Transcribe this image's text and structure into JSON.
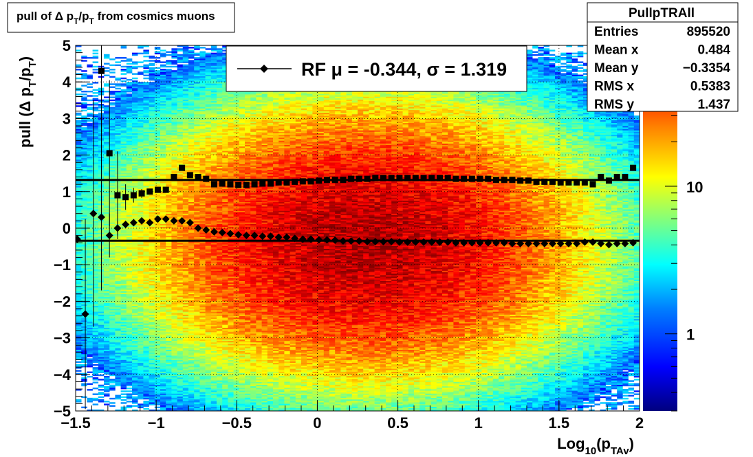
{
  "title": "pull of Δ p_T/p_T from cosmics muons",
  "stats": {
    "name": "PullpTRAll",
    "rows": [
      {
        "label": "Entries",
        "value": "895520"
      },
      {
        "label": "Mean x",
        "value": "0.484"
      },
      {
        "label": "Mean y",
        "value": "−0.3354"
      },
      {
        "label": "RMS x",
        "value": "0.5383"
      },
      {
        "label": "RMS y",
        "value": "1.437"
      }
    ]
  },
  "legend": {
    "text": "RF μ = -0.344, σ =   1.319"
  },
  "colors": {
    "frame": "#000000",
    "palette": [
      "#00007f",
      "#0000ff",
      "#007fff",
      "#00ffff",
      "#7fff7f",
      "#ffff00",
      "#ff7f00",
      "#ff0000",
      "#7f0000"
    ]
  },
  "chart_data": {
    "type": "heatmap",
    "x_axis": {
      "range": [
        -1.5,
        2
      ],
      "ticks": [
        -1.5,
        -1,
        -0.5,
        0,
        0.5,
        1,
        1.5,
        2
      ],
      "tick_labels": [
        "−1.5",
        "−1",
        "−0.5",
        "0",
        "0.5",
        "1",
        "1.5",
        "2"
      ],
      "label": "Log10(pTAv)"
    },
    "y_axis": {
      "range": [
        -5,
        5
      ],
      "ticks": [
        -5,
        -4,
        -3,
        -2,
        -1,
        0,
        1,
        2,
        3,
        4,
        5
      ],
      "tick_labels": [
        "−5",
        "−4",
        "−3",
        "−2",
        "−1",
        "0",
        "1",
        "2",
        "3",
        "4",
        "5"
      ],
      "label": "pull (Δ p_T/p_T)"
    },
    "z_axis": {
      "scale": "log",
      "tick_labels": [
        "1",
        "10"
      ],
      "tick_values": [
        1,
        10
      ],
      "range": [
        0.3,
        90
      ]
    },
    "grid": true,
    "density": {
      "x_center": 0.3,
      "y_center": -0.35,
      "x_rms": 0.5383,
      "y_rms": 1.437,
      "peak_counts": 70
    },
    "series": [
      {
        "kind": "sigma",
        "marker": "square",
        "x": [
          -1.34,
          -1.29,
          -1.24,
          -1.19,
          -1.14,
          -1.09,
          -1.04,
          -0.99,
          -0.94,
          -0.89,
          -0.84,
          -0.79,
          -0.74,
          -0.69,
          -0.64,
          -0.59,
          -0.54,
          -0.49,
          -0.44,
          -0.39,
          -0.34,
          -0.29,
          -0.24,
          -0.19,
          -0.14,
          -0.09,
          -0.04,
          0.01,
          0.06,
          0.11,
          0.16,
          0.21,
          0.26,
          0.31,
          0.36,
          0.41,
          0.46,
          0.51,
          0.56,
          0.61,
          0.66,
          0.71,
          0.76,
          0.81,
          0.86,
          0.91,
          0.96,
          1.01,
          1.06,
          1.11,
          1.16,
          1.21,
          1.26,
          1.31,
          1.36,
          1.41,
          1.46,
          1.51,
          1.56,
          1.61,
          1.66,
          1.71,
          1.76,
          1.81,
          1.86,
          1.91,
          1.96
        ],
        "y": [
          4.3,
          2.05,
          0.9,
          0.85,
          0.9,
          0.95,
          1.0,
          1.05,
          1.05,
          1.4,
          1.65,
          1.45,
          1.4,
          1.35,
          1.2,
          1.22,
          1.2,
          1.18,
          1.18,
          1.2,
          1.22,
          1.22,
          1.25,
          1.25,
          1.27,
          1.28,
          1.28,
          1.3,
          1.32,
          1.32,
          1.32,
          1.35,
          1.35,
          1.35,
          1.37,
          1.37,
          1.37,
          1.37,
          1.37,
          1.37,
          1.37,
          1.37,
          1.37,
          1.37,
          1.35,
          1.35,
          1.35,
          1.35,
          1.35,
          1.32,
          1.32,
          1.32,
          1.3,
          1.3,
          1.27,
          1.27,
          1.27,
          1.25,
          1.25,
          1.25,
          1.25,
          1.2,
          1.4,
          1.3,
          1.4,
          1.4,
          1.65
        ],
        "err": [
          4.0,
          2.0,
          1.2,
          0.35,
          0.2,
          0.12,
          0.08,
          0.06,
          0.05,
          0.04,
          0.04,
          0.03,
          0.03,
          0.03,
          0.02,
          0.02,
          0.02,
          0.02,
          0.02,
          0.02,
          0.02,
          0.02,
          0.02,
          0.02,
          0.02,
          0.02,
          0.02,
          0.02,
          0.02,
          0.02,
          0.02,
          0.02,
          0.02,
          0.02,
          0.02,
          0.02,
          0.02,
          0.02,
          0.02,
          0.02,
          0.02,
          0.02,
          0.02,
          0.02,
          0.02,
          0.02,
          0.02,
          0.02,
          0.02,
          0.02,
          0.02,
          0.02,
          0.02,
          0.02,
          0.02,
          0.02,
          0.02,
          0.02,
          0.02,
          0.02,
          0.02,
          0.03,
          0.03,
          0.04,
          0.05,
          0.06,
          0.08
        ]
      },
      {
        "kind": "mean",
        "marker": "diamond",
        "x": [
          -1.49,
          -1.44,
          -1.39,
          -1.34,
          -1.29,
          -1.24,
          -1.19,
          -1.14,
          -1.09,
          -1.04,
          -0.99,
          -0.94,
          -0.89,
          -0.84,
          -0.79,
          -0.74,
          -0.69,
          -0.64,
          -0.59,
          -0.54,
          -0.49,
          -0.44,
          -0.39,
          -0.34,
          -0.29,
          -0.24,
          -0.19,
          -0.14,
          -0.09,
          -0.04,
          0.01,
          0.06,
          0.11,
          0.16,
          0.21,
          0.26,
          0.31,
          0.36,
          0.41,
          0.46,
          0.51,
          0.56,
          0.61,
          0.66,
          0.71,
          0.76,
          0.81,
          0.86,
          0.91,
          0.96,
          1.01,
          1.06,
          1.11,
          1.16,
          1.21,
          1.26,
          1.31,
          1.36,
          1.41,
          1.46,
          1.51,
          1.56,
          1.61,
          1.66,
          1.71,
          1.76,
          1.81,
          1.86,
          1.91,
          1.96
        ],
        "y": [
          -0.3,
          -2.35,
          0.4,
          0.3,
          -0.2,
          0.0,
          0.1,
          0.15,
          0.2,
          0.15,
          0.25,
          0.25,
          0.2,
          0.2,
          0.15,
          0.0,
          -0.05,
          -0.1,
          -0.12,
          -0.15,
          -0.18,
          -0.2,
          -0.2,
          -0.22,
          -0.22,
          -0.25,
          -0.25,
          -0.28,
          -0.3,
          -0.3,
          -0.32,
          -0.32,
          -0.33,
          -0.35,
          -0.35,
          -0.35,
          -0.37,
          -0.37,
          -0.37,
          -0.37,
          -0.38,
          -0.38,
          -0.38,
          -0.38,
          -0.38,
          -0.38,
          -0.38,
          -0.4,
          -0.4,
          -0.4,
          -0.4,
          -0.4,
          -0.4,
          -0.4,
          -0.42,
          -0.42,
          -0.42,
          -0.42,
          -0.42,
          -0.42,
          -0.42,
          -0.42,
          -0.42,
          -0.38,
          -0.38,
          -0.42,
          -0.45,
          -0.42,
          -0.42,
          -0.4
        ],
        "err": [
          0.05,
          2.6,
          3.1,
          2.0,
          0.6,
          0.2,
          0.1,
          0.07,
          0.05,
          0.04,
          0.04,
          0.03,
          0.03,
          0.03,
          0.02,
          0.02,
          0.02,
          0.02,
          0.02,
          0.02,
          0.02,
          0.02,
          0.02,
          0.02,
          0.02,
          0.02,
          0.02,
          0.02,
          0.02,
          0.02,
          0.02,
          0.02,
          0.02,
          0.02,
          0.02,
          0.02,
          0.02,
          0.02,
          0.02,
          0.02,
          0.02,
          0.02,
          0.02,
          0.02,
          0.02,
          0.02,
          0.02,
          0.02,
          0.02,
          0.02,
          0.02,
          0.02,
          0.02,
          0.02,
          0.02,
          0.02,
          0.02,
          0.02,
          0.02,
          0.02,
          0.02,
          0.02,
          0.02,
          0.02,
          0.02,
          0.02,
          0.03,
          0.03,
          0.04,
          0.05
        ]
      }
    ],
    "fit_lines": [
      {
        "name": "sigma fit",
        "y": 1.319
      },
      {
        "name": "mean fit",
        "y": -0.344
      }
    ]
  }
}
